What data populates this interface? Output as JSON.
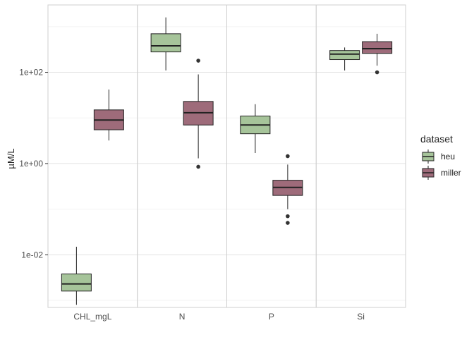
{
  "chart_data": {
    "type": "boxplot",
    "ylabel": "µM/L",
    "xlabel": "",
    "y_scale": "log10",
    "ylim": [
      0.0007,
      3000
    ],
    "y_ticks": [
      {
        "value": 0.01,
        "label": "1e-02"
      },
      {
        "value": 1,
        "label": "1e+00"
      },
      {
        "value": 100,
        "label": "1e+02"
      }
    ],
    "categories": [
      "CHL_mgL",
      "N",
      "P",
      "Si"
    ],
    "grid": true,
    "legend": {
      "title": "dataset",
      "position": "right",
      "entries": [
        {
          "name": "heu",
          "color": "#A6C49A"
        },
        {
          "name": "miller",
          "color": "#9E6B7A"
        }
      ]
    },
    "series": [
      {
        "name": "heu",
        "color": "#A6C49A",
        "boxes": [
          {
            "category": "CHL_mgL",
            "lower_whisker": 0.0008,
            "q1": 0.0016,
            "median": 0.0023,
            "q3": 0.0038,
            "upper_whisker": 0.015,
            "outliers": []
          },
          {
            "category": "N",
            "lower_whisker": 110,
            "q1": 280,
            "median": 380,
            "q3": 700,
            "upper_whisker": 1600,
            "outliers": []
          },
          {
            "category": "P",
            "lower_whisker": 1.7,
            "q1": 4.5,
            "median": 7,
            "q3": 11,
            "upper_whisker": 20,
            "outliers": []
          },
          {
            "category": "Si",
            "lower_whisker": 110,
            "q1": 190,
            "median": 250,
            "q3": 300,
            "upper_whisker": 350,
            "outliers": []
          }
        ]
      },
      {
        "name": "miller",
        "color": "#9E6B7A",
        "boxes": [
          {
            "category": "CHL_mgL",
            "lower_whisker": 3.2,
            "q1": 5.5,
            "median": 9,
            "q3": 15,
            "upper_whisker": 42,
            "outliers": []
          },
          {
            "category": "N",
            "lower_whisker": 1.3,
            "q1": 7,
            "median": 13,
            "q3": 23,
            "upper_whisker": 90,
            "outliers": [
              0.85,
              180
            ]
          },
          {
            "category": "P",
            "lower_whisker": 0.1,
            "q1": 0.2,
            "median": 0.3,
            "q3": 0.43,
            "upper_whisker": 0.95,
            "outliers": [
              1.45,
              0.07,
              0.05
            ]
          },
          {
            "category": "Si",
            "lower_whisker": 140,
            "q1": 260,
            "median": 330,
            "q3": 470,
            "upper_whisker": 700,
            "outliers": [
              100
            ]
          }
        ]
      }
    ]
  }
}
